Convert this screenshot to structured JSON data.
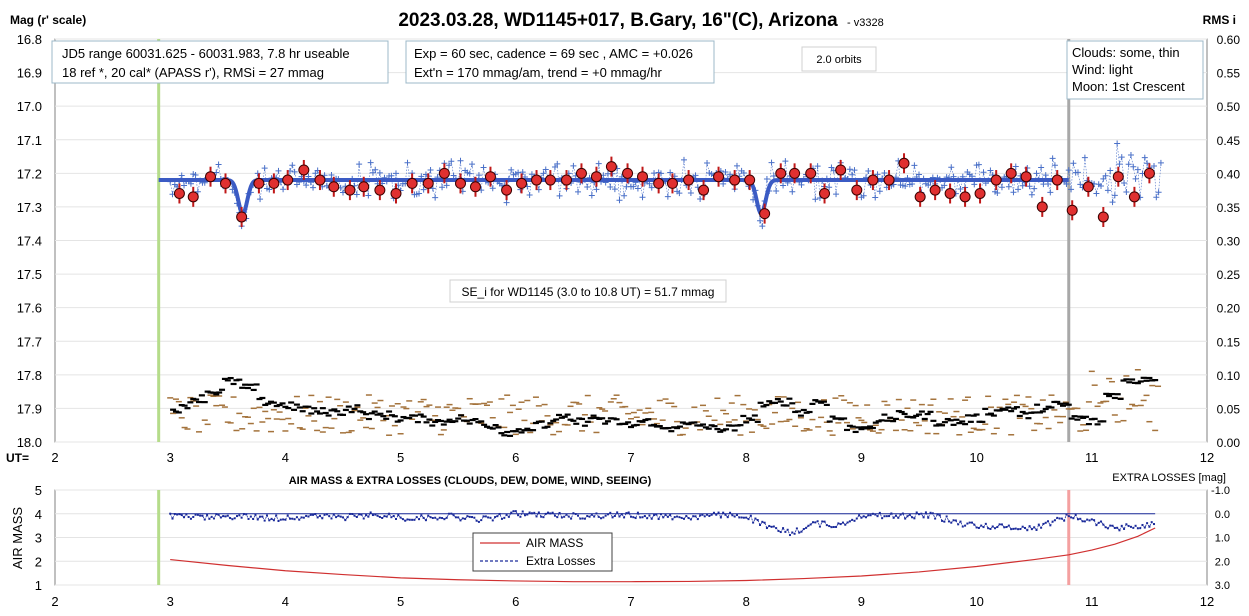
{
  "header": {
    "title": "2023.03.28, WD1145+017, B.Gary, 16\"(C), Arizona",
    "version": "- v3328",
    "left_axis_label": "Mag (r' scale)",
    "right_axis_label": "RMS i",
    "ut_label": "UT="
  },
  "info_boxes": {
    "range_line1": "JD5 range 60031.625 - 60031.983, 7.8 hr useable",
    "range_line2": "18 ref *, 20 cal*  (APASS r'), RMSi = 27 mmag",
    "exp_line1": "Exp = 60 sec, cadence = 69 sec , AMC = +0.026",
    "exp_line2": "Ext'n = 170 mmag/am, trend = +0 mmag/hr",
    "orbits": "2.0 orbits",
    "weather_line1": "Clouds: some, thin",
    "weather_line2": "Wind:    light",
    "weather_line3": "Moon:   1st Crescent",
    "se_label": "SE_i for WD1145 (3.0 to 10.8 UT) = 51.7 mmag"
  },
  "chart_data": [
    {
      "type": "scatter",
      "title": "2023.03.28, WD1145+017, B.Gary, 16\"(C), Arizona",
      "xlabel": "UT=",
      "ylabel": "Mag (r' scale)",
      "y2label": "RMS i",
      "xlim": [
        2,
        12
      ],
      "ylim": [
        18.0,
        16.8
      ],
      "y2lim": [
        0.0,
        0.6
      ],
      "x_ticks": [
        2,
        3,
        4,
        5,
        6,
        7,
        8,
        9,
        10,
        11,
        12
      ],
      "y_ticks": [
        16.8,
        16.9,
        17.0,
        17.1,
        17.2,
        17.3,
        17.4,
        17.5,
        17.6,
        17.7,
        17.8,
        17.9,
        18.0
      ],
      "y2_ticks": [
        0.6,
        0.55,
        0.5,
        0.45,
        0.4,
        0.35,
        0.3,
        0.25,
        0.2,
        0.15,
        0.1,
        0.05,
        0.0
      ],
      "y_tick_labels": [
        "16.8",
        "16.9",
        "17.0",
        "17.1",
        "17.2",
        "17.3",
        "17.4",
        "17.5",
        "17.6",
        "17.7",
        "17.8",
        "17.9",
        "18.0"
      ],
      "y2_tick_labels": [
        "0.60",
        "0.55",
        "0.50",
        "0.45",
        "0.40",
        "0.35",
        "0.30",
        "0.25",
        "0.20",
        "0.15",
        "0.10",
        "0.05",
        "0.00"
      ],
      "vertical_markers": [
        {
          "x": 2.9,
          "color": "#b5dc8a"
        },
        {
          "x": 10.8,
          "color": "#a8a8a8"
        }
      ],
      "model": {
        "color": "#3b5bc4",
        "x_range": [
          2.9,
          10.8
        ],
        "baseline": 17.22,
        "dips": [
          {
            "center": 3.63,
            "depth": 0.1
          },
          {
            "center": 8.13,
            "depth": 0.1
          }
        ]
      },
      "binned_points": {
        "color": "#e03030",
        "x": [
          3.08,
          3.2,
          3.35,
          3.48,
          3.62,
          3.77,
          3.9,
          4.02,
          4.16,
          4.3,
          4.42,
          4.56,
          4.68,
          4.82,
          4.96,
          5.1,
          5.24,
          5.38,
          5.52,
          5.65,
          5.78,
          5.92,
          6.05,
          6.18,
          6.3,
          6.44,
          6.57,
          6.7,
          6.83,
          6.97,
          7.1,
          7.24,
          7.36,
          7.5,
          7.63,
          7.76,
          7.9,
          8.03,
          8.16,
          8.3,
          8.42,
          8.56,
          8.68,
          8.82,
          8.96,
          9.1,
          9.24,
          9.37,
          9.51,
          9.64,
          9.77,
          9.9,
          10.03,
          10.17,
          10.3,
          10.43,
          10.57,
          10.7,
          10.83,
          10.97,
          11.1,
          11.23,
          11.37,
          11.5
        ],
        "y": [
          17.26,
          17.27,
          17.21,
          17.23,
          17.33,
          17.23,
          17.23,
          17.22,
          17.19,
          17.22,
          17.24,
          17.25,
          17.24,
          17.25,
          17.26,
          17.23,
          17.23,
          17.2,
          17.23,
          17.24,
          17.21,
          17.25,
          17.23,
          17.22,
          17.22,
          17.22,
          17.2,
          17.21,
          17.18,
          17.2,
          17.21,
          17.23,
          17.23,
          17.22,
          17.25,
          17.21,
          17.22,
          17.22,
          17.32,
          17.2,
          17.2,
          17.2,
          17.26,
          17.19,
          17.25,
          17.22,
          17.22,
          17.17,
          17.27,
          17.25,
          17.26,
          17.27,
          17.26,
          17.22,
          17.2,
          17.21,
          17.3,
          17.22,
          17.31,
          17.24,
          17.33,
          17.21,
          17.27,
          17.2
        ]
      },
      "raw_points": {
        "color": "#4a70c8",
        "description_series": "unbinned measurements",
        "x_range": [
          3.0,
          11.6
        ],
        "center": 17.22,
        "spread": 0.05
      },
      "rms_black": {
        "color": "#000000",
        "x": [
          3.1,
          3.25,
          3.4,
          3.55,
          3.7,
          3.85,
          4.0,
          4.15,
          4.3,
          4.45,
          4.6,
          4.75,
          4.9,
          5.05,
          5.2,
          5.35,
          5.5,
          5.65,
          5.8,
          5.95,
          6.1,
          6.25,
          6.4,
          6.55,
          6.7,
          6.85,
          7.0,
          7.15,
          7.3,
          7.45,
          7.6,
          7.75,
          7.9,
          8.05,
          8.2,
          8.35,
          8.5,
          8.65,
          8.8,
          8.95,
          9.1,
          9.25,
          9.4,
          9.55,
          9.7,
          9.85,
          10.0,
          10.15,
          10.3,
          10.45,
          10.6,
          10.75,
          10.9,
          11.05,
          11.2,
          11.35,
          11.5
        ],
        "y": [
          0.05,
          0.065,
          0.075,
          0.09,
          0.08,
          0.06,
          0.055,
          0.05,
          0.045,
          0.045,
          0.05,
          0.04,
          0.04,
          0.035,
          0.035,
          0.03,
          0.035,
          0.03,
          0.025,
          0.015,
          0.02,
          0.025,
          0.035,
          0.03,
          0.035,
          0.03,
          0.025,
          0.03,
          0.02,
          0.025,
          0.025,
          0.02,
          0.02,
          0.035,
          0.055,
          0.06,
          0.045,
          0.06,
          0.035,
          0.02,
          0.025,
          0.035,
          0.04,
          0.04,
          0.03,
          0.03,
          0.035,
          0.045,
          0.05,
          0.04,
          0.05,
          0.055,
          0.035,
          0.03,
          0.07,
          0.09,
          0.095
        ]
      },
      "rms_brown": {
        "color": "#a4733c",
        "x_range": [
          3.0,
          11.6
        ],
        "envelope": 0.06
      }
    },
    {
      "type": "line",
      "title": "AIR MASS & EXTRA LOSSES (CLOUDS, DEW, DOME, WIND, SEEING)",
      "xlabel": "",
      "ylabel": "AIR MASS",
      "y2label": "EXTRA LOSSES [mag]",
      "xlim": [
        2,
        12
      ],
      "ylim": [
        1,
        5
      ],
      "y2lim": [
        3.0,
        -1.0
      ],
      "x_ticks": [
        2,
        3,
        4,
        5,
        6,
        7,
        8,
        9,
        10,
        11,
        12
      ],
      "y_ticks": [
        1,
        2,
        3,
        4,
        5
      ],
      "y2_ticks": [
        -1.0,
        0.0,
        1.0,
        2.0,
        3.0
      ],
      "y2_tick_labels": [
        "-1.0",
        "0.0",
        "1.0",
        "2.0",
        "3.0"
      ],
      "vertical_markers": [
        {
          "x": 2.9,
          "color": "#b5dc8a"
        },
        {
          "x": 10.8,
          "color": "#f4a0a0"
        }
      ],
      "legend": {
        "position": "center",
        "entries": [
          "AIR MASS",
          "Extra Losses"
        ]
      },
      "series": [
        {
          "name": "AIR MASS",
          "color": "#d03030",
          "x": [
            3.0,
            3.5,
            4.0,
            4.5,
            5.0,
            5.5,
            6.0,
            6.5,
            7.0,
            7.5,
            8.0,
            8.5,
            9.0,
            9.5,
            10.0,
            10.5,
            10.8,
            11.0,
            11.2,
            11.4,
            11.55
          ],
          "y": [
            2.07,
            1.82,
            1.6,
            1.44,
            1.3,
            1.22,
            1.17,
            1.14,
            1.14,
            1.15,
            1.19,
            1.27,
            1.38,
            1.55,
            1.78,
            2.07,
            2.27,
            2.47,
            2.72,
            3.05,
            3.4
          ]
        },
        {
          "name": "Extra Losses",
          "color": "#1a2a9a",
          "x": [
            3.0,
            3.3,
            3.6,
            3.9,
            4.2,
            4.5,
            4.8,
            5.1,
            5.4,
            5.7,
            6.0,
            6.3,
            6.6,
            6.9,
            7.2,
            7.5,
            7.8,
            8.0,
            8.2,
            8.4,
            8.6,
            8.8,
            9.0,
            9.3,
            9.6,
            9.9,
            10.2,
            10.5,
            10.8,
            11.0,
            11.2,
            11.4,
            11.55
          ],
          "y": [
            0.1,
            0.15,
            0.1,
            0.2,
            0.1,
            0.15,
            0.05,
            0.2,
            0.1,
            0.25,
            0.0,
            0.05,
            0.1,
            0.05,
            0.1,
            0.15,
            0.05,
            0.1,
            0.6,
            0.8,
            0.4,
            0.5,
            0.05,
            0.1,
            0.05,
            0.45,
            0.55,
            0.6,
            0.1,
            0.3,
            0.6,
            0.5,
            0.4
          ]
        }
      ]
    }
  ]
}
